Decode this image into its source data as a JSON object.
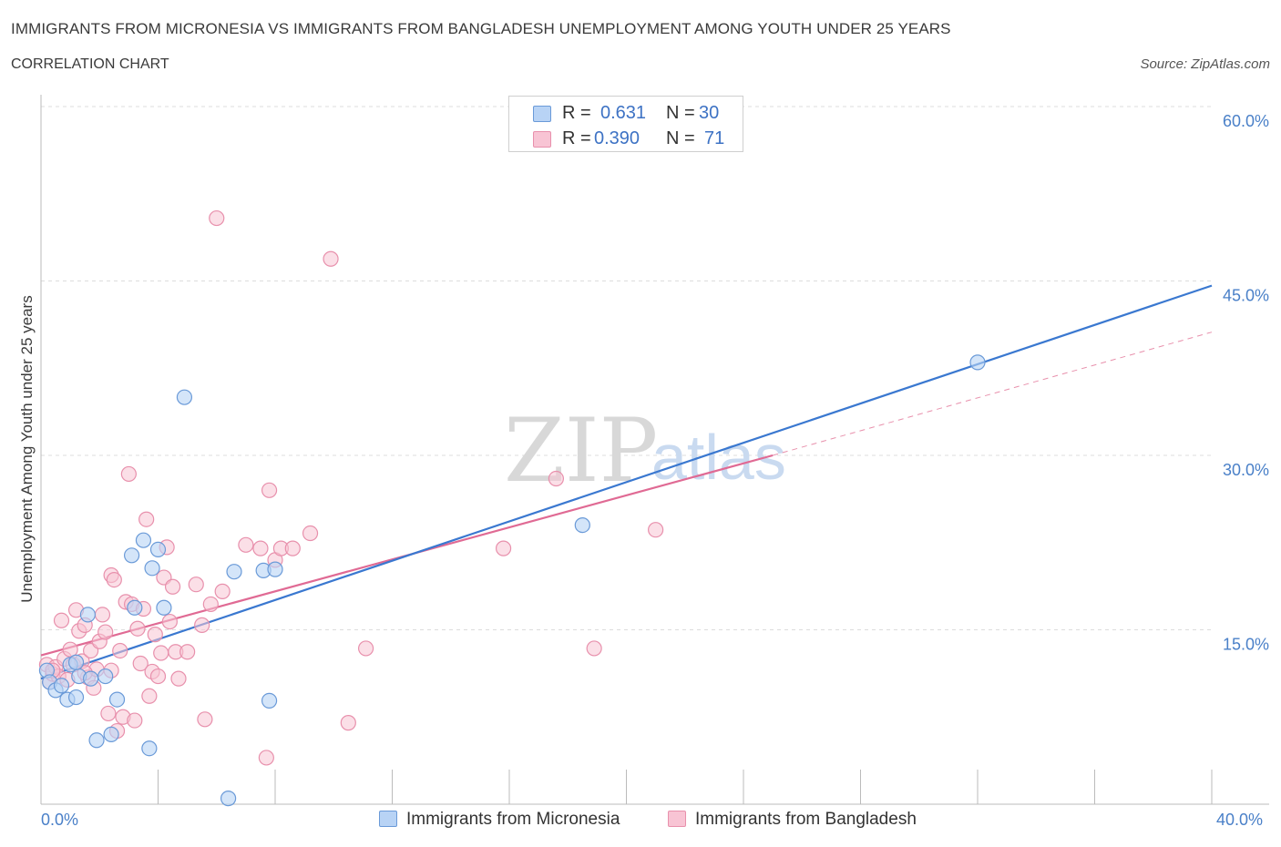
{
  "header": {
    "title": "IMMIGRANTS FROM MICRONESIA VS IMMIGRANTS FROM BANGLADESH UNEMPLOYMENT AMONG YOUTH UNDER 25 YEARS",
    "subtitle": "CORRELATION CHART",
    "source": "Source: ZipAtlas.com"
  },
  "watermark": {
    "zip": "ZIP",
    "atlas": "atlas"
  },
  "legend": {
    "micronesia": {
      "r_label": "R =",
      "r_value": "0.631",
      "n_label": "N =",
      "n_value": "30"
    },
    "bangladesh": {
      "r_label": "R =",
      "r_value": "0.390",
      "n_label": "N =",
      "n_value": "71"
    }
  },
  "bottom_legend": {
    "micronesia": "Immigrants from Micronesia",
    "bangladesh": "Immigrants from Bangladesh"
  },
  "colors": {
    "micronesia_fill": "#b8d3f5",
    "micronesia_stroke": "#6a9ad8",
    "micronesia_line": "#3a78d0",
    "bangladesh_fill": "#f8c4d4",
    "bangladesh_stroke": "#e890ac",
    "bangladesh_line": "#e06a94",
    "tick_text": "#4a80c8",
    "grid": "#dcdcdc"
  },
  "chart_data": {
    "type": "scatter",
    "title": "IMMIGRANTS FROM MICRONESIA VS IMMIGRANTS FROM BANGLADESH UNEMPLOYMENT AMONG YOUTH UNDER 25 YEARS",
    "xlabel": "",
    "ylabel": "Unemployment Among Youth under 25 years",
    "xlim": [
      0,
      40
    ],
    "ylim": [
      0,
      60
    ],
    "x_tick_labels": {
      "min": "0.0%",
      "max": "40.0%"
    },
    "y_ticks": [
      {
        "value": 15,
        "label": "15.0%"
      },
      {
        "value": 30,
        "label": "30.0%"
      },
      {
        "value": 45,
        "label": "45.0%"
      },
      {
        "value": 60,
        "label": "60.0%"
      }
    ],
    "series": [
      {
        "name": "Immigrants from Micronesia",
        "color_key": "micronesia",
        "points": [
          [
            0.2,
            11.5
          ],
          [
            0.3,
            10.5
          ],
          [
            0.5,
            9.8
          ],
          [
            0.7,
            10.2
          ],
          [
            0.9,
            9.0
          ],
          [
            1.0,
            12.0
          ],
          [
            1.2,
            9.2
          ],
          [
            1.3,
            11.0
          ],
          [
            1.6,
            16.3
          ],
          [
            1.7,
            10.8
          ],
          [
            1.9,
            5.5
          ],
          [
            2.2,
            11.0
          ],
          [
            2.4,
            6.0
          ],
          [
            2.6,
            9.0
          ],
          [
            3.1,
            21.4
          ],
          [
            3.2,
            16.9
          ],
          [
            3.5,
            22.7
          ],
          [
            3.7,
            4.8
          ],
          [
            3.8,
            20.3
          ],
          [
            4.0,
            21.9
          ],
          [
            4.2,
            16.9
          ],
          [
            4.9,
            35.0
          ],
          [
            6.4,
            0.5
          ],
          [
            6.6,
            20.0
          ],
          [
            7.6,
            20.1
          ],
          [
            7.8,
            8.9
          ],
          [
            8.0,
            20.2
          ],
          [
            18.5,
            24.0
          ],
          [
            32.0,
            38.0
          ],
          [
            1.2,
            12.2
          ]
        ],
        "trend": {
          "x": [
            0,
            40
          ],
          "y": [
            10.8,
            44.6
          ]
        }
      },
      {
        "name": "Immigrants from Bangladesh",
        "color_key": "bangladesh",
        "points": [
          [
            0.2,
            12.0
          ],
          [
            0.3,
            10.5
          ],
          [
            0.4,
            11.2
          ],
          [
            0.5,
            11.8
          ],
          [
            0.6,
            11.0
          ],
          [
            0.7,
            15.8
          ],
          [
            0.8,
            12.5
          ],
          [
            0.9,
            10.7
          ],
          [
            1.0,
            13.3
          ],
          [
            1.1,
            12.0
          ],
          [
            1.2,
            16.7
          ],
          [
            1.3,
            14.9
          ],
          [
            1.4,
            12.3
          ],
          [
            1.5,
            15.4
          ],
          [
            1.6,
            10.9
          ],
          [
            1.7,
            13.2
          ],
          [
            1.8,
            10.0
          ],
          [
            1.9,
            11.6
          ],
          [
            2.0,
            14.0
          ],
          [
            2.1,
            16.3
          ],
          [
            2.2,
            14.8
          ],
          [
            2.3,
            7.8
          ],
          [
            2.4,
            19.7
          ],
          [
            2.5,
            19.3
          ],
          [
            2.6,
            6.3
          ],
          [
            2.7,
            13.2
          ],
          [
            2.8,
            7.5
          ],
          [
            2.9,
            17.4
          ],
          [
            3.0,
            28.4
          ],
          [
            3.1,
            17.2
          ],
          [
            3.2,
            7.2
          ],
          [
            3.3,
            15.1
          ],
          [
            3.4,
            12.1
          ],
          [
            3.5,
            16.8
          ],
          [
            3.6,
            24.5
          ],
          [
            3.7,
            9.3
          ],
          [
            3.8,
            11.4
          ],
          [
            3.9,
            14.6
          ],
          [
            4.0,
            11.0
          ],
          [
            4.1,
            13.0
          ],
          [
            4.2,
            19.5
          ],
          [
            4.3,
            22.1
          ],
          [
            4.4,
            15.7
          ],
          [
            4.5,
            18.7
          ],
          [
            4.6,
            13.1
          ],
          [
            4.7,
            10.8
          ],
          [
            5.0,
            13.1
          ],
          [
            5.3,
            18.9
          ],
          [
            5.5,
            15.4
          ],
          [
            5.6,
            7.3
          ],
          [
            5.8,
            17.2
          ],
          [
            6.0,
            50.4
          ],
          [
            6.2,
            18.3
          ],
          [
            7.0,
            22.3
          ],
          [
            7.5,
            22.0
          ],
          [
            7.7,
            4.0
          ],
          [
            7.8,
            27.0
          ],
          [
            8.0,
            21.0
          ],
          [
            8.2,
            22.0
          ],
          [
            8.6,
            22.0
          ],
          [
            9.2,
            23.3
          ],
          [
            9.9,
            46.9
          ],
          [
            10.5,
            7.0
          ],
          [
            11.1,
            13.4
          ],
          [
            15.8,
            22.0
          ],
          [
            17.6,
            28.0
          ],
          [
            18.9,
            13.4
          ],
          [
            21.0,
            23.6
          ],
          [
            0.4,
            11.5
          ],
          [
            1.5,
            11.3
          ],
          [
            2.4,
            11.5
          ]
        ],
        "trend": {
          "x": [
            0,
            25
          ],
          "y": [
            12.8,
            30.0
          ]
        },
        "trend_extension": {
          "x": [
            25,
            40
          ],
          "y": [
            30.0,
            40.6
          ]
        }
      }
    ]
  }
}
